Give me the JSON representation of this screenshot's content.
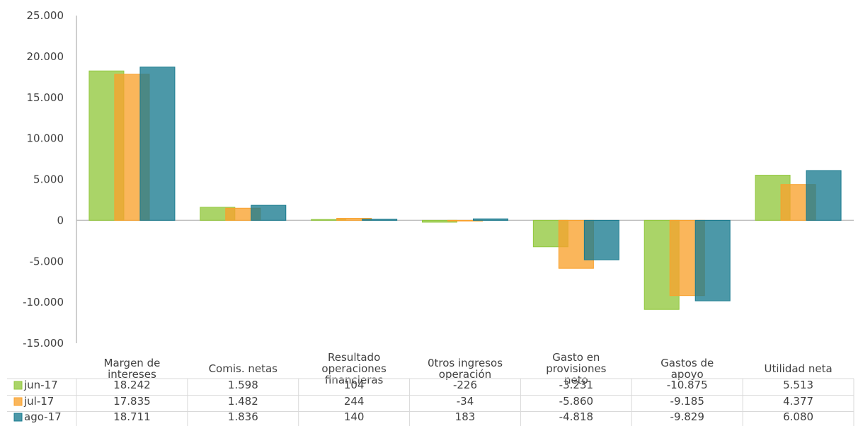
{
  "chart_data": {
    "type": "bar",
    "categories": [
      [
        "Margen de",
        "intereses"
      ],
      [
        "Comis. netas"
      ],
      [
        "Resultado",
        "operaciones",
        "financieras"
      ],
      [
        "0tros ingresos",
        "operación"
      ],
      [
        "Gasto en",
        "provisiones",
        "neto"
      ],
      [
        "Gastos de",
        "apoyo"
      ],
      [
        "Utilidad neta"
      ]
    ],
    "series": [
      {
        "name": "jun-17",
        "color": "#92c83e",
        "values": [
          18242,
          1598,
          104,
          -226,
          -3231,
          -10875,
          5513
        ],
        "labels": [
          "18.242",
          "1.598",
          "104",
          "-226",
          "-3.231",
          "-10.875",
          "5.513"
        ]
      },
      {
        "name": "jul-17",
        "color": "#f9a12d",
        "values": [
          17835,
          1482,
          244,
          -34,
          -5860,
          -9185,
          4377
        ],
        "labels": [
          "17.835",
          "1.482",
          "244",
          "-34",
          "-5.860",
          "-9.185",
          "4.377"
        ]
      },
      {
        "name": "ago-17",
        "color": "#1a7b8f",
        "values": [
          18711,
          1836,
          140,
          183,
          -4818,
          -9829,
          6080
        ],
        "labels": [
          "18.711",
          "1.836",
          "140",
          "183",
          "-4.818",
          "-9.829",
          "6.080"
        ]
      }
    ],
    "ylim": [
      -15000,
      25000
    ],
    "yticks": [
      25000,
      20000,
      15000,
      10000,
      5000,
      0,
      -5000,
      -10000,
      -15000
    ],
    "ytick_labels": [
      "25.000",
      "20.000",
      "15.000",
      "10.000",
      "5.000",
      "0",
      "-5.000",
      "-10.000",
      "-15.000"
    ],
    "title": "",
    "xlabel": "",
    "ylabel": "",
    "grid": false,
    "legend": "data-table"
  }
}
